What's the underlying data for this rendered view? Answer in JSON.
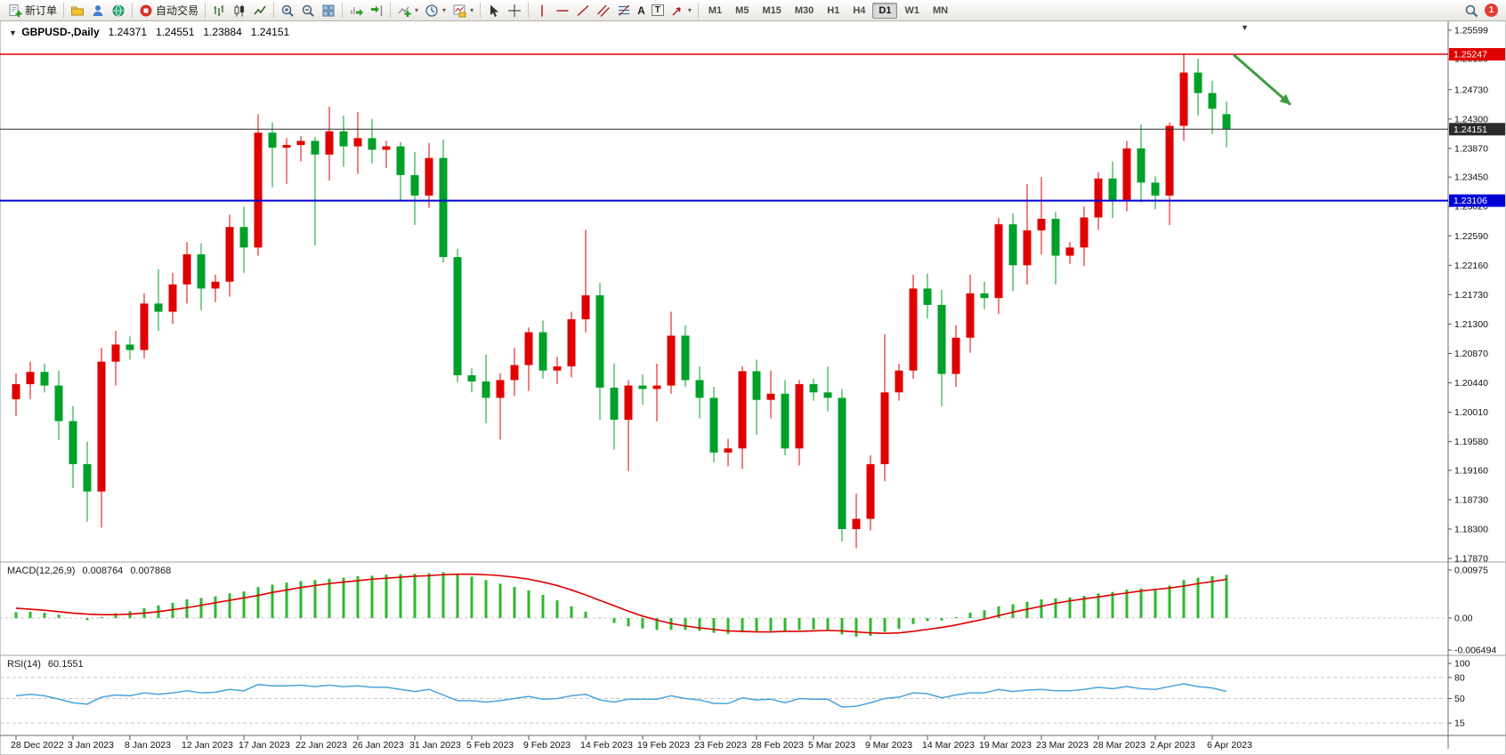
{
  "toolbar": {
    "new_order": "新订单",
    "autotrading": "自动交易",
    "text_tool": "A",
    "label_tool": "T",
    "timeframes": [
      "M1",
      "M5",
      "M15",
      "M30",
      "H1",
      "H4",
      "D1",
      "W1",
      "MN"
    ],
    "active_timeframe": "D1",
    "notification_count": "1",
    "icons": [
      "new-order",
      "metaeditor",
      "user",
      "globe",
      "autotrading",
      "bar-chart",
      "candlestick-chart",
      "line-chart",
      "zoom-in",
      "zoom-out",
      "tile-windows",
      "auto-scroll",
      "chart-shift",
      "indicators",
      "periods",
      "templates",
      "cursor",
      "crosshair",
      "vertical-line",
      "horizontal-line",
      "trendline",
      "equidistant-channel",
      "fibonacci",
      "text",
      "text-label",
      "arrows",
      "search",
      "notifications"
    ]
  },
  "chart": {
    "title_symbol": "GBPUSD-,Daily",
    "open": "1.24371",
    "high": "1.24551",
    "low": "1.23884",
    "close": "1.24151"
  },
  "indicator_labels": {
    "macd_name": "MACD(12,26,9)",
    "macd_main": "0.008764",
    "macd_signal": "0.007868",
    "rsi_name": "RSI(14)",
    "rsi_value": "60.1551"
  },
  "chart_data": {
    "type": "candlestick",
    "symbol": "GBPUSD",
    "period": "Daily",
    "colors": {
      "bull": "#e00000",
      "bear": "#00a029",
      "macd_hist": "#2eb82e",
      "macd_signal": "#e00000",
      "rsi": "#4aa3dd",
      "arrow": "#3e9b40"
    },
    "price_axis": {
      "min": 1.1787,
      "max": 1.25599,
      "labels": [
        "1.25599",
        "1.25180",
        "1.24730",
        "1.24300",
        "1.23870",
        "1.23450",
        "1.23020",
        "1.22590",
        "1.22160",
        "1.21730",
        "1.21300",
        "1.20870",
        "1.20440",
        "1.20010",
        "1.19580",
        "1.19160",
        "1.18730",
        "1.18300",
        "1.17870"
      ]
    },
    "levels": [
      {
        "name": "resistance-line",
        "price": 1.25247,
        "label": "1.25247",
        "color": "#e00000",
        "width": 1.5
      },
      {
        "name": "current-price-line",
        "price": 1.24151,
        "label": "1.24151",
        "color": "#2b2b2b",
        "width": 1
      },
      {
        "name": "support-line",
        "price": 1.23106,
        "label": "1.23106",
        "color": "#0000d8",
        "width": 2
      }
    ],
    "arrow": {
      "bar_from": 85.5,
      "price_from": 1.2524,
      "bar_to": 89.5,
      "price_to": 1.2451
    },
    "x_labels": [
      {
        "index": 0,
        "text": "28 Dec 2022"
      },
      {
        "index": 4,
        "text": "3 Jan 2023"
      },
      {
        "index": 8,
        "text": "8 Jan 2023"
      },
      {
        "index": 12,
        "text": "12 Jan 2023"
      },
      {
        "index": 16,
        "text": "17 Jan 2023"
      },
      {
        "index": 20,
        "text": "22 Jan 2023"
      },
      {
        "index": 24,
        "text": "26 Jan 2023"
      },
      {
        "index": 28,
        "text": "31 Jan 2023"
      },
      {
        "index": 32,
        "text": "5 Feb 2023"
      },
      {
        "index": 36,
        "text": "9 Feb 2023"
      },
      {
        "index": 40,
        "text": "14 Feb 2023"
      },
      {
        "index": 44,
        "text": "19 Feb 2023"
      },
      {
        "index": 48,
        "text": "23 Feb 2023"
      },
      {
        "index": 52,
        "text": "28 Feb 2023"
      },
      {
        "index": 56,
        "text": "5 Mar 2023"
      },
      {
        "index": 60,
        "text": "9 Mar 2023"
      },
      {
        "index": 64,
        "text": "14 Mar 2023"
      },
      {
        "index": 68,
        "text": "19 Mar 2023"
      },
      {
        "index": 72,
        "text": "23 Mar 2023"
      },
      {
        "index": 76,
        "text": "28 Mar 2023"
      },
      {
        "index": 80,
        "text": "2 Apr 2023"
      },
      {
        "index": 84,
        "text": "6 Apr 2023"
      }
    ],
    "candles": [
      [
        1.202,
        1.2058,
        1.1995,
        1.2042
      ],
      [
        1.2042,
        1.2075,
        1.202,
        1.206
      ],
      [
        1.206,
        1.2072,
        1.203,
        1.204
      ],
      [
        1.204,
        1.2062,
        1.196,
        1.1988
      ],
      [
        1.1988,
        1.201,
        1.189,
        1.1925
      ],
      [
        1.1925,
        1.1958,
        1.1841,
        1.1885
      ],
      [
        1.1885,
        1.2095,
        1.1832,
        1.2075
      ],
      [
        1.2075,
        1.212,
        1.204,
        1.21
      ],
      [
        1.21,
        1.2112,
        1.2078,
        1.2092
      ],
      [
        1.2092,
        1.2175,
        1.208,
        1.216
      ],
      [
        1.216,
        1.221,
        1.212,
        1.2148
      ],
      [
        1.2148,
        1.2205,
        1.213,
        1.2188
      ],
      [
        1.2188,
        1.225,
        1.216,
        1.2232
      ],
      [
        1.2232,
        1.2248,
        1.215,
        1.2182
      ],
      [
        1.2182,
        1.2202,
        1.2162,
        1.2192
      ],
      [
        1.2192,
        1.229,
        1.217,
        1.2272
      ],
      [
        1.2272,
        1.2302,
        1.2205,
        1.2242
      ],
      [
        1.2242,
        1.2437,
        1.223,
        1.241
      ],
      [
        1.241,
        1.2425,
        1.233,
        1.2388
      ],
      [
        1.2388,
        1.2402,
        1.2335,
        1.2392
      ],
      [
        1.2392,
        1.2405,
        1.2368,
        1.2398
      ],
      [
        1.2398,
        1.2404,
        1.2245,
        1.2378
      ],
      [
        1.2378,
        1.2448,
        1.234,
        1.2412
      ],
      [
        1.2412,
        1.2435,
        1.236,
        1.239
      ],
      [
        1.239,
        1.244,
        1.235,
        1.2402
      ],
      [
        1.2402,
        1.243,
        1.2365,
        1.2385
      ],
      [
        1.2385,
        1.2398,
        1.2358,
        1.239
      ],
      [
        1.239,
        1.2396,
        1.231,
        1.2348
      ],
      [
        1.2348,
        1.2382,
        1.2275,
        1.2318
      ],
      [
        1.2318,
        1.2395,
        1.23,
        1.2373
      ],
      [
        1.2373,
        1.24,
        1.222,
        1.2228
      ],
      [
        1.2228,
        1.224,
        1.2045,
        1.2055
      ],
      [
        1.2055,
        1.2066,
        1.203,
        1.2046
      ],
      [
        1.2046,
        1.2085,
        1.1985,
        1.2022
      ],
      [
        1.2022,
        1.2058,
        1.1961,
        1.2048
      ],
      [
        1.2048,
        1.2095,
        1.2025,
        1.207
      ],
      [
        1.207,
        1.2125,
        1.2032,
        1.2118
      ],
      [
        1.2118,
        1.2135,
        1.205,
        1.2062
      ],
      [
        1.2062,
        1.2082,
        1.2042,
        1.2068
      ],
      [
        1.2068,
        1.2148,
        1.2052,
        1.2137
      ],
      [
        1.2137,
        1.2268,
        1.2118,
        1.2172
      ],
      [
        1.2172,
        1.219,
        1.199,
        1.2037
      ],
      [
        1.2037,
        1.2072,
        1.1946,
        1.199
      ],
      [
        1.199,
        1.2048,
        1.1915,
        1.204
      ],
      [
        1.204,
        1.2056,
        1.2012,
        1.2035
      ],
      [
        1.2035,
        1.2072,
        1.1988,
        1.204
      ],
      [
        1.204,
        1.2148,
        1.2028,
        1.2113
      ],
      [
        1.2113,
        1.2128,
        1.2038,
        1.2048
      ],
      [
        1.2048,
        1.2068,
        1.1992,
        1.2022
      ],
      [
        1.2022,
        1.2038,
        1.1928,
        1.1942
      ],
      [
        1.1942,
        1.1962,
        1.1922,
        1.1948
      ],
      [
        1.1948,
        1.2068,
        1.1918,
        1.2061
      ],
      [
        1.2061,
        1.2078,
        1.1968,
        1.2019
      ],
      [
        1.2019,
        1.2062,
        1.1992,
        1.2028
      ],
      [
        1.2028,
        1.2048,
        1.1938,
        1.1948
      ],
      [
        1.1948,
        1.2048,
        1.1923,
        1.2042
      ],
      [
        1.2042,
        1.205,
        1.2018,
        1.203
      ],
      [
        1.203,
        1.2068,
        1.2002,
        1.2022
      ],
      [
        1.2022,
        1.2035,
        1.1812,
        1.183
      ],
      [
        1.183,
        1.1882,
        1.1802,
        1.1845
      ],
      [
        1.1845,
        1.1938,
        1.1828,
        1.1925
      ],
      [
        1.1925,
        1.2115,
        1.19,
        1.203
      ],
      [
        1.203,
        1.2072,
        1.2018,
        1.2062
      ],
      [
        1.2062,
        1.2202,
        1.205,
        1.2182
      ],
      [
        1.2182,
        1.2204,
        1.2138,
        1.2158
      ],
      [
        1.2158,
        1.218,
        1.201,
        1.2057
      ],
      [
        1.2057,
        1.2128,
        1.2038,
        1.211
      ],
      [
        1.211,
        1.2202,
        1.2088,
        1.2175
      ],
      [
        1.2175,
        1.2192,
        1.2152,
        1.2168
      ],
      [
        1.2168,
        1.2285,
        1.2145,
        1.2276
      ],
      [
        1.2276,
        1.2292,
        1.2178,
        1.2216
      ],
      [
        1.2216,
        1.2335,
        1.2188,
        1.2267
      ],
      [
        1.2267,
        1.2345,
        1.2232,
        1.2284
      ],
      [
        1.2284,
        1.2294,
        1.2188,
        1.223
      ],
      [
        1.223,
        1.225,
        1.2218,
        1.2242
      ],
      [
        1.2242,
        1.2302,
        1.2215,
        1.2286
      ],
      [
        1.2286,
        1.2352,
        1.2268,
        1.2343
      ],
      [
        1.2343,
        1.2368,
        1.2285,
        1.2312
      ],
      [
        1.2312,
        1.2398,
        1.2295,
        1.2387
      ],
      [
        1.2387,
        1.2422,
        1.2308,
        1.2337
      ],
      [
        1.2337,
        1.2346,
        1.2298,
        1.2318
      ],
      [
        1.2318,
        1.2425,
        1.2275,
        1.242
      ],
      [
        1.242,
        1.2525,
        1.2398,
        1.2498
      ],
      [
        1.2498,
        1.2518,
        1.2435,
        1.2468
      ],
      [
        1.2468,
        1.2486,
        1.2408,
        1.2445
      ],
      [
        1.24371,
        1.24551,
        1.23884,
        1.24151
      ]
    ],
    "macd": {
      "range": [
        -0.006494,
        0.00975
      ],
      "axis_labels": [
        "0.00975",
        "0.00",
        "-0.006494"
      ],
      "hist": [
        0.0012,
        0.0013,
        0.0011,
        0.0007,
        0.0,
        -0.0004,
        0.0002,
        0.001,
        0.0014,
        0.002,
        0.0026,
        0.0031,
        0.0038,
        0.0041,
        0.0044,
        0.005,
        0.0054,
        0.0063,
        0.0068,
        0.0072,
        0.0075,
        0.0077,
        0.008,
        0.0082,
        0.0085,
        0.0086,
        0.0088,
        0.0089,
        0.009,
        0.0091,
        0.0093,
        0.0089,
        0.0084,
        0.0077,
        0.007,
        0.0063,
        0.0056,
        0.0047,
        0.0036,
        0.0024,
        0.0013,
        0.0001,
        -0.001,
        -0.0017,
        -0.0021,
        -0.0024,
        -0.0024,
        -0.0024,
        -0.0026,
        -0.003,
        -0.0032,
        -0.0029,
        -0.0028,
        -0.0026,
        -0.0027,
        -0.0024,
        -0.0023,
        -0.0024,
        -0.0033,
        -0.0038,
        -0.0036,
        -0.0028,
        -0.0022,
        -0.0012,
        -0.0006,
        -0.0005,
        0.0002,
        0.0011,
        0.0016,
        0.0024,
        0.0028,
        0.0033,
        0.0038,
        0.004,
        0.0042,
        0.0045,
        0.005,
        0.0053,
        0.0058,
        0.006,
        0.0059,
        0.0066,
        0.0077,
        0.0082,
        0.0085,
        0.008764
      ],
      "signal": [
        0.002,
        0.0018,
        0.0016,
        0.0013,
        0.001,
        0.0008,
        0.0007,
        0.0007,
        0.0008,
        0.001,
        0.0013,
        0.0017,
        0.0021,
        0.0026,
        0.0031,
        0.0036,
        0.0041,
        0.0046,
        0.0052,
        0.0057,
        0.0062,
        0.0066,
        0.007,
        0.0073,
        0.0076,
        0.0079,
        0.0081,
        0.0083,
        0.0085,
        0.0086,
        0.0088,
        0.0089,
        0.0089,
        0.0088,
        0.0086,
        0.0083,
        0.0079,
        0.0073,
        0.0066,
        0.0057,
        0.0047,
        0.0036,
        0.0025,
        0.0014,
        0.0004,
        -0.0004,
        -0.0011,
        -0.0016,
        -0.002,
        -0.0023,
        -0.0026,
        -0.0027,
        -0.0028,
        -0.0028,
        -0.0027,
        -0.0027,
        -0.0026,
        -0.0025,
        -0.0026,
        -0.0028,
        -0.003,
        -0.0031,
        -0.003,
        -0.0027,
        -0.0023,
        -0.0019,
        -0.0014,
        -0.0008,
        -0.0002,
        0.0005,
        0.0012,
        0.0018,
        0.0024,
        0.003,
        0.0035,
        0.0039,
        0.0043,
        0.0047,
        0.0051,
        0.0055,
        0.0058,
        0.0061,
        0.0065,
        0.007,
        0.0074,
        0.007868
      ]
    },
    "rsi": {
      "range": [
        0,
        100
      ],
      "axis_labels": [
        "100",
        "80",
        "50",
        "15"
      ],
      "levels": [
        80,
        50,
        15
      ],
      "values": [
        54,
        56,
        54,
        49,
        44,
        42,
        52,
        55,
        54,
        58,
        56,
        58,
        61,
        58,
        59,
        63,
        61,
        70,
        68,
        68,
        69,
        67,
        69,
        67,
        68,
        66,
        66,
        63,
        60,
        63,
        55,
        47,
        47,
        45,
        47,
        50,
        53,
        49,
        50,
        54,
        56,
        48,
        45,
        49,
        49,
        49,
        54,
        50,
        48,
        43,
        43,
        51,
        48,
        49,
        44,
        50,
        49,
        49,
        38,
        39,
        44,
        50,
        52,
        58,
        57,
        51,
        55,
        58,
        58,
        63,
        60,
        62,
        63,
        61,
        61,
        63,
        66,
        64,
        67,
        64,
        63,
        67,
        71,
        67,
        65,
        60.1551
      ]
    }
  }
}
